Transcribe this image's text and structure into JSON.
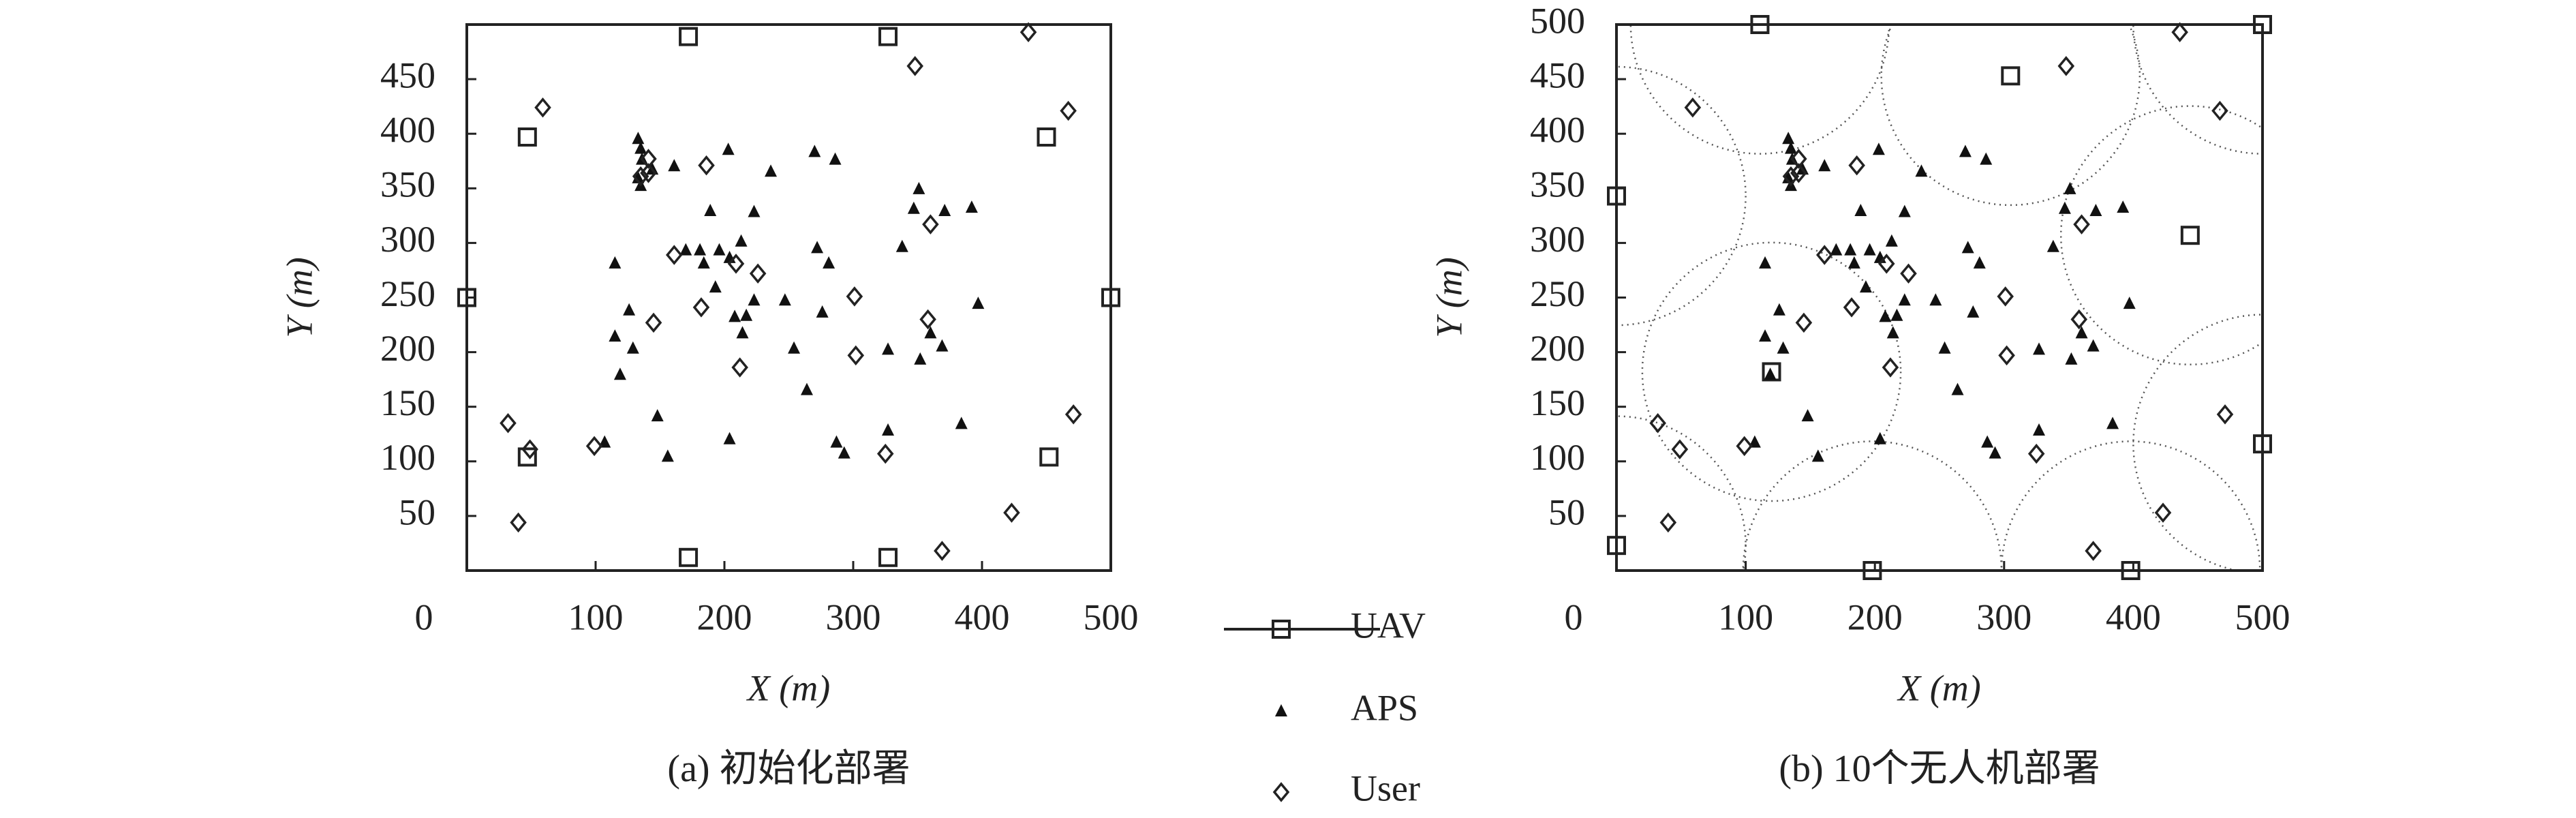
{
  "chart_data": [
    {
      "type": "scatter",
      "title": "(a) 初始化部署",
      "xlabel": "X (m)",
      "ylabel": "Y (m)",
      "xlim": [
        0,
        500
      ],
      "ylim": [
        0,
        500
      ],
      "xticks": [
        0,
        100,
        200,
        300,
        400,
        500
      ],
      "yticks": [
        50,
        100,
        150,
        200,
        250,
        300,
        350,
        400,
        450
      ],
      "series": [
        {
          "name": "UAV",
          "marker": "square",
          "color": "#222222",
          "x": [
            172,
            327,
            47,
            450,
            0,
            500,
            47,
            452,
            172,
            327
          ],
          "values": [
            489,
            489,
            397,
            397,
            250,
            250,
            104,
            104,
            12,
            12
          ]
        },
        {
          "name": "APS",
          "marker": "triangle",
          "color": "#111111",
          "x": [
            133,
            135,
            136,
            133,
            135,
            144,
            161,
            203,
            236,
            270,
            286,
            351,
            347,
            392,
            371,
            223,
            115,
            189,
            170,
            181,
            184,
            196,
            213,
            204,
            272,
            281,
            338,
            193,
            223,
            126,
            115,
            129,
            247,
            217,
            208,
            214,
            276,
            254,
            327,
            352,
            360,
            369,
            397,
            119,
            264,
            148,
            156,
            204,
            287,
            293,
            327,
            384,
            107
          ],
          "values": [
            395,
            386,
            376,
            359,
            352,
            367,
            370,
            385,
            365,
            383,
            376,
            349,
            331,
            332,
            329,
            328,
            281,
            329,
            293,
            293,
            281,
            293,
            301,
            286,
            295,
            281,
            296,
            259,
            247,
            238,
            214,
            203,
            247,
            233,
            232,
            217,
            236,
            203,
            202,
            193,
            217,
            205,
            244,
            179,
            165,
            141,
            104,
            120,
            117,
            107,
            128,
            134,
            117
          ]
        },
        {
          "name": "User",
          "marker": "diamond",
          "color": "#222222",
          "x": [
            436,
            348,
            59,
            467,
            141,
            141,
            135,
            186,
            360,
            161,
            209,
            226,
            301,
            182,
            145,
            358,
            302,
            212,
            32,
            49,
            99,
            325,
            471,
            40,
            423,
            369
          ],
          "values": [
            493,
            462,
            424,
            421,
            377,
            364,
            361,
            371,
            317,
            289,
            281,
            272,
            251,
            241,
            227,
            230,
            197,
            186,
            135,
            111,
            114,
            107,
            143,
            44,
            53,
            18
          ]
        }
      ]
    },
    {
      "type": "scatter",
      "title": "(b) 10个无人机部署",
      "xlabel": "X (m)",
      "ylabel": "Y (m)",
      "xlim": [
        0,
        500
      ],
      "ylim": [
        0,
        500
      ],
      "coverage_radius": 100,
      "xticks": [
        0,
        100,
        200,
        300,
        400,
        500
      ],
      "yticks": [
        50,
        100,
        150,
        200,
        250,
        300,
        350,
        400,
        450,
        500
      ],
      "series": [
        {
          "marker": "square",
          "color": "#222222",
          "x": [
            111,
            500,
            305,
            0,
            444,
            120,
            500,
            0,
            198,
            398
          ],
          "values": [
            500,
            500,
            453,
            343,
            307,
            182,
            116,
            23,
            0,
            0
          ]
        },
        {
          "marker": "triangle",
          "color": "#111111",
          "x": [
            133,
            135,
            136,
            133,
            135,
            144,
            161,
            203,
            236,
            270,
            286,
            351,
            347,
            392,
            371,
            223,
            115,
            189,
            170,
            181,
            184,
            196,
            213,
            204,
            272,
            281,
            338,
            193,
            223,
            126,
            115,
            129,
            247,
            217,
            208,
            214,
            276,
            254,
            327,
            352,
            360,
            369,
            397,
            119,
            264,
            148,
            156,
            204,
            287,
            293,
            327,
            384,
            107
          ],
          "values": [
            395,
            386,
            376,
            359,
            352,
            367,
            370,
            385,
            365,
            383,
            376,
            349,
            331,
            332,
            329,
            328,
            281,
            329,
            293,
            293,
            281,
            293,
            301,
            286,
            295,
            281,
            296,
            259,
            247,
            238,
            214,
            203,
            247,
            233,
            232,
            217,
            236,
            203,
            202,
            193,
            217,
            205,
            244,
            179,
            165,
            141,
            104,
            120,
            117,
            107,
            128,
            134,
            117
          ]
        },
        {
          "marker": "diamond",
          "color": "#222222",
          "x": [
            436,
            348,
            59,
            467,
            141,
            141,
            135,
            186,
            360,
            161,
            209,
            226,
            301,
            182,
            145,
            358,
            302,
            212,
            32,
            49,
            99,
            325,
            471,
            40,
            423,
            369
          ],
          "values": [
            493,
            462,
            424,
            421,
            377,
            364,
            361,
            371,
            317,
            289,
            281,
            272,
            251,
            241,
            227,
            230,
            197,
            186,
            135,
            111,
            114,
            107,
            143,
            44,
            53,
            18
          ]
        }
      ]
    }
  ]
}
